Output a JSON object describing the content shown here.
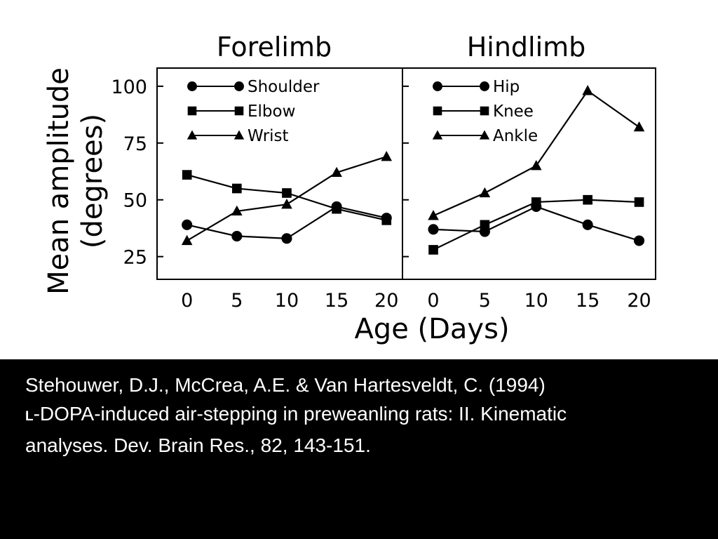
{
  "chart_data": {
    "type": "line",
    "ylabel_line1": "Mean amplitude",
    "ylabel_line2": "(degrees)",
    "xlabel": "Age (Days)",
    "x": [
      0,
      5,
      10,
      15,
      20
    ],
    "xlim": [
      -3,
      21.6
    ],
    "ylim": [
      15,
      108
    ],
    "yticks": [
      25,
      50,
      75,
      100
    ],
    "grid": false,
    "legend_position": "top-left",
    "panels": [
      {
        "title": "Forelimb",
        "series": [
          {
            "name": "Shoulder",
            "marker": "circle",
            "values": [
              39,
              34,
              33,
              47,
              42
            ]
          },
          {
            "name": "Elbow",
            "marker": "square",
            "values": [
              61,
              55,
              53,
              46,
              41
            ]
          },
          {
            "name": "Wrist",
            "marker": "triangle",
            "values": [
              32,
              45,
              48,
              62,
              69
            ]
          }
        ]
      },
      {
        "title": "Hindlimb",
        "series": [
          {
            "name": "Hip",
            "marker": "circle",
            "values": [
              37,
              36,
              47,
              39,
              32
            ]
          },
          {
            "name": "Knee",
            "marker": "square",
            "values": [
              28,
              39,
              49,
              50,
              49
            ]
          },
          {
            "name": "Ankle",
            "marker": "triangle",
            "values": [
              43,
              53,
              65,
              98,
              82
            ]
          }
        ]
      }
    ]
  },
  "citation": {
    "line1": "Stehouwer, D.J., McCrea, A.E. & Van Hartesveldt, C. (1994)",
    "prefix": "L",
    "line2_rest": "-DOPA-induced air-stepping in preweanling rats:  II. Kinematic",
    "line3": "analyses.  Dev. Brain Res., 82, 143-151."
  }
}
